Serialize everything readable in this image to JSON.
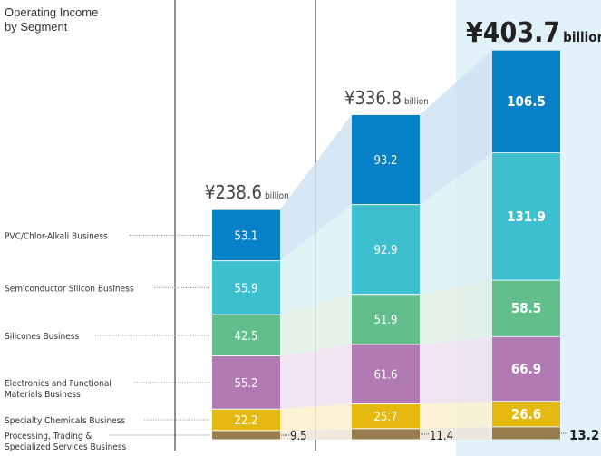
{
  "chart_data": {
    "type": "stacked-bar",
    "title": "Operating Income\nby Segment",
    "unit": "billion",
    "currency_symbol": "¥",
    "categories": [
      "",
      "",
      ""
    ],
    "totals": [
      238.6,
      336.8,
      403.7
    ],
    "total_labels": [
      "¥238.6",
      "¥336.8",
      "¥403.7"
    ],
    "series": [
      {
        "name": "Processing, Trading & Specialized Services Business",
        "values": [
          9.5,
          11.4,
          13.2
        ],
        "color": "#9a7d4f",
        "tint": "#ece5d8"
      },
      {
        "name": "Specialty Chemicals Business",
        "values": [
          22.2,
          25.7,
          26.6
        ],
        "color": "#e5b90f",
        "tint": "#fbf0cc"
      },
      {
        "name": "Electronics and Functional Materials Business",
        "values": [
          55.2,
          61.6,
          66.9
        ],
        "color": "#b17ab3",
        "tint": "#efe2f0"
      },
      {
        "name": "Silicones Business",
        "values": [
          42.5,
          51.9,
          58.5
        ],
        "color": "#62bf8c",
        "tint": "#e0f1e6"
      },
      {
        "name": "Semiconductor Silicon Business",
        "values": [
          55.9,
          92.9,
          131.9
        ],
        "color": "#3dbfcf",
        "tint": "#dbf1f4"
      },
      {
        "name": "PVC/Chlor-Alkali Business",
        "values": [
          53.1,
          93.2,
          106.5
        ],
        "color": "#0680c6",
        "tint": "#cfe3f3"
      }
    ],
    "highlight_color": "#e1f2fa",
    "legend_placement": "left",
    "grid": false
  }
}
